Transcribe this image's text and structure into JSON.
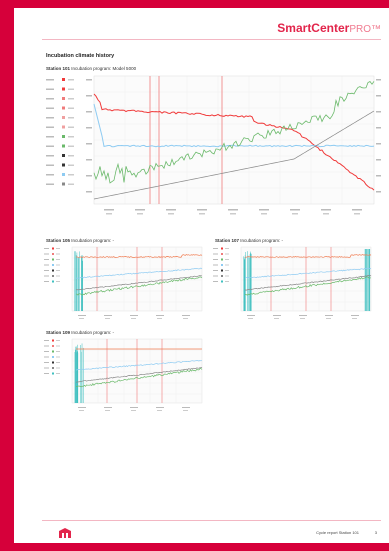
{
  "brand": {
    "name": "SmartCenter",
    "tm": "PRO™",
    "accent": "#e2254b"
  },
  "page_title": "Incubation climate history",
  "main_chart": {
    "station": "Station 101",
    "program": "Incubation program: Model 5000"
  },
  "small_charts": [
    {
      "station": "Station 105",
      "program": "Incubation program: -"
    },
    {
      "station": "Station 107",
      "program": "Incubation program: -"
    },
    {
      "station": "Station 109",
      "program": "Incubation program: -"
    }
  ],
  "footer": {
    "text": "Cycle report Station 101",
    "page": "3"
  },
  "chart_data": [
    {
      "type": "line",
      "title": "Station 101"
    },
    {
      "type": "line",
      "title": "Station 105"
    },
    {
      "type": "line",
      "title": "Station 107"
    },
    {
      "type": "line",
      "title": "Station 109"
    }
  ]
}
